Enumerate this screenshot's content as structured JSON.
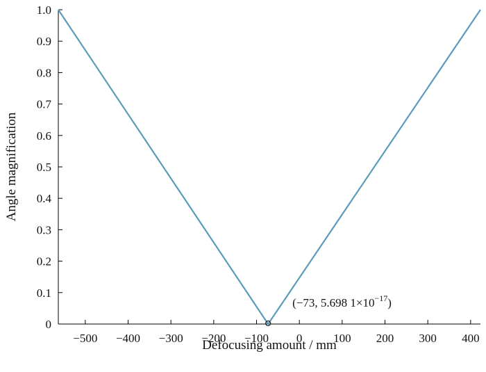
{
  "chart_data": {
    "type": "line",
    "title": "",
    "xlabel": "Defocusing amount / mm",
    "ylabel": "Angle magnification",
    "xlim": [
      -563,
      423
    ],
    "ylim": [
      0,
      1.0
    ],
    "x_ticks": [
      -500,
      -400,
      -300,
      -200,
      -100,
      0,
      100,
      200,
      300,
      400
    ],
    "x_tick_labels": [
      "−500",
      "−400",
      "−300",
      "−200",
      "−100",
      "0",
      "100",
      "200",
      "300",
      "400"
    ],
    "y_ticks": [
      0,
      0.1,
      0.2,
      0.3,
      0.4,
      0.5,
      0.6,
      0.7,
      0.8,
      0.9,
      1.0
    ],
    "y_tick_labels": [
      "0",
      "0.1",
      "0.2",
      "0.3",
      "0.4",
      "0.5",
      "0.6",
      "0.7",
      "0.8",
      "0.9",
      "1.0"
    ],
    "grid": false,
    "color": "#5a9bbd",
    "series": [
      {
        "x": [
          -563,
          -73,
          423
        ],
        "y": [
          1.0,
          0.0,
          1.0
        ]
      }
    ],
    "annotation": {
      "point": [
        -73,
        0
      ],
      "prefix": "(−73, 5.698 1×10",
      "exponent": "−17",
      "suffix": ")"
    }
  }
}
